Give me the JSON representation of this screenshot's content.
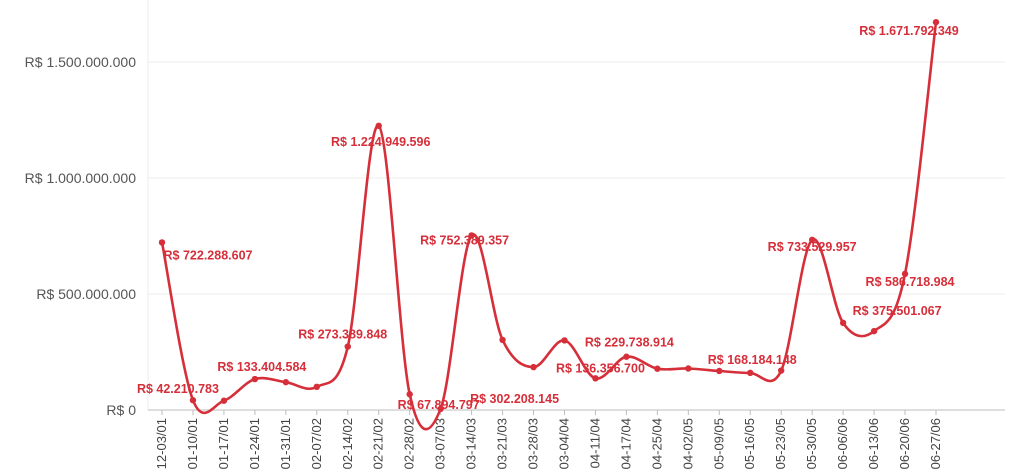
{
  "colors": {
    "series": "#d62f3a",
    "grid": "#ececec",
    "axis": "#bdbdbd",
    "tick_text": "#555555"
  },
  "chart_data": {
    "type": "line",
    "x": [
      "12-03/01",
      "01-10/01",
      "01-17/01",
      "01-24/01",
      "01-31/01",
      "02-07/02",
      "02-14/02",
      "02-21/02",
      "02-28/02",
      "03-07/03",
      "03-14/03",
      "03-21/03",
      "03-28/03",
      "03-04/04",
      "04-11/04",
      "04-17/04",
      "04-25/04",
      "04-02/05",
      "05-09/05",
      "05-16/05",
      "05-23/05",
      "05-30/05",
      "06-06/06",
      "06-13/06",
      "06-20/06",
      "06-27/06"
    ],
    "series": [
      {
        "values": [
          722288607,
          42210783,
          40000000,
          133404584,
          120000000,
          100000000,
          273389848,
          1224949596,
          67894797,
          5000000,
          752389357,
          302208145,
          185000000,
          300000000,
          136356700,
          229738914,
          178000000,
          179000000,
          168184148,
          160000000,
          170000000,
          733529957,
          375501067,
          340000000,
          586718984,
          1671792349
        ],
        "data_labels": [
          "R$ 722.288.607",
          "R$ 42.210.783",
          "",
          "R$ 133.404.584",
          "",
          "",
          "R$ 273.389.848",
          "R$ 1.224.949.596",
          "R$ 67.894.797",
          "",
          "R$ 752.389.357",
          "R$ 302.208.145",
          "",
          "",
          "R$ 136.356.700",
          "R$ 229.738.914",
          "",
          "",
          "R$ 168.184.148",
          "",
          "",
          "R$ 733.529.957",
          "R$ 375.501.067",
          "",
          "R$ 586.718.984",
          "R$ 1.671.792.349"
        ]
      }
    ],
    "xlabel": "",
    "ylabel": "",
    "ylim": [
      0,
      1750000000
    ],
    "yticks": [
      0,
      500000000,
      1000000000,
      1500000000
    ],
    "ytick_labels": [
      "R$ 0",
      "R$ 500.000.000",
      "R$ 1.000.000.000",
      "R$ 1.500.000.000"
    ],
    "grid": "horizontal",
    "legend": "none"
  }
}
